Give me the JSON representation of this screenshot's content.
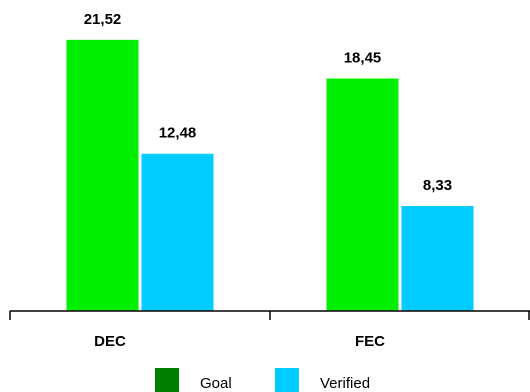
{
  "chart_data": {
    "type": "bar",
    "categories": [
      "DEC",
      "FEC"
    ],
    "series": [
      {
        "name": "Goal",
        "color": "#00ee00",
        "legend_color": "#008000",
        "values": [
          21.52,
          18.45
        ],
        "value_labels": [
          "21,52",
          "18,45"
        ]
      },
      {
        "name": "Verified",
        "color": "#00ccff",
        "legend_color": "#00ccff",
        "values": [
          12.48,
          8.33
        ],
        "value_labels": [
          "12,48",
          "8,33"
        ]
      }
    ],
    "ylim": [
      0,
      24
    ]
  }
}
